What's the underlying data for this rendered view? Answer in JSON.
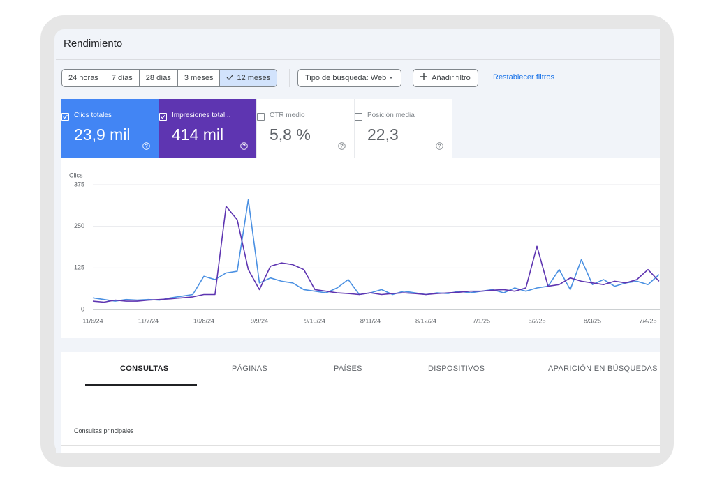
{
  "header": {
    "title": "Rendimiento"
  },
  "date_ranges": [
    "24 horas",
    "7 días",
    "28 días",
    "3 meses",
    "12 meses"
  ],
  "filters": {
    "search_type": "Tipo de búsqueda: Web",
    "add_filter": "Añadir filtro",
    "reset": "Restablecer filtros"
  },
  "metrics": [
    {
      "label": "Clics totales",
      "value": "23,9 mil"
    },
    {
      "label": "Impresiones total...",
      "value": "414 mil"
    },
    {
      "label": "CTR medio",
      "value": "5,8 %"
    },
    {
      "label": "Posición media",
      "value": "22,3"
    }
  ],
  "chart_data": {
    "type": "line",
    "y_label": "Clics",
    "categories": [
      "11/6/24",
      null,
      null,
      null,
      null,
      "11/7/24",
      null,
      null,
      null,
      null,
      "10/8/24",
      null,
      null,
      null,
      null,
      "9/9/24",
      null,
      null,
      null,
      null,
      "9/10/24",
      null,
      null,
      null,
      null,
      "8/11/24",
      null,
      null,
      null,
      null,
      "8/12/24",
      null,
      null,
      null,
      null,
      "7/1/25",
      null,
      null,
      null,
      null,
      "6/2/25",
      null,
      null,
      null,
      null,
      "8/3/25",
      null,
      null,
      null,
      null,
      "7/4/25",
      null
    ],
    "series": [
      {
        "name": "Clics",
        "color": "#4a90e2",
        "values": [
          35,
          30,
          25,
          30,
          28,
          30,
          28,
          35,
          40,
          45,
          100,
          90,
          110,
          115,
          330,
          80,
          95,
          85,
          80,
          60,
          55,
          50,
          65,
          90,
          45,
          50,
          60,
          45,
          55,
          50,
          45,
          50,
          48,
          55,
          50,
          55,
          60,
          50,
          65,
          55,
          65,
          70,
          120,
          60,
          150,
          75,
          90,
          70,
          80,
          85,
          75,
          105
        ]
      },
      {
        "name": "Impresiones",
        "color": "#5e35b1",
        "values": [
          25,
          22,
          28,
          25,
          25,
          28,
          30,
          32,
          35,
          38,
          45,
          45,
          310,
          270,
          120,
          60,
          130,
          140,
          135,
          120,
          60,
          55,
          50,
          48,
          45,
          50,
          45,
          48,
          50,
          48,
          45,
          48,
          50,
          52,
          55,
          55,
          58,
          60,
          55,
          65,
          190,
          70,
          75,
          95,
          85,
          80,
          75,
          85,
          80,
          90,
          120,
          85
        ]
      }
    ],
    "ylim": [
      0,
      375
    ],
    "yticks": [
      0,
      125,
      250,
      375
    ],
    "grid": true
  },
  "tabs": [
    "CONSULTAS",
    "PÁGINAS",
    "PAÍSES",
    "DISPOSITIVOS",
    "APARICIÓN EN BÚSQUEDAS"
  ],
  "table": {
    "title": "Consultas principales"
  }
}
